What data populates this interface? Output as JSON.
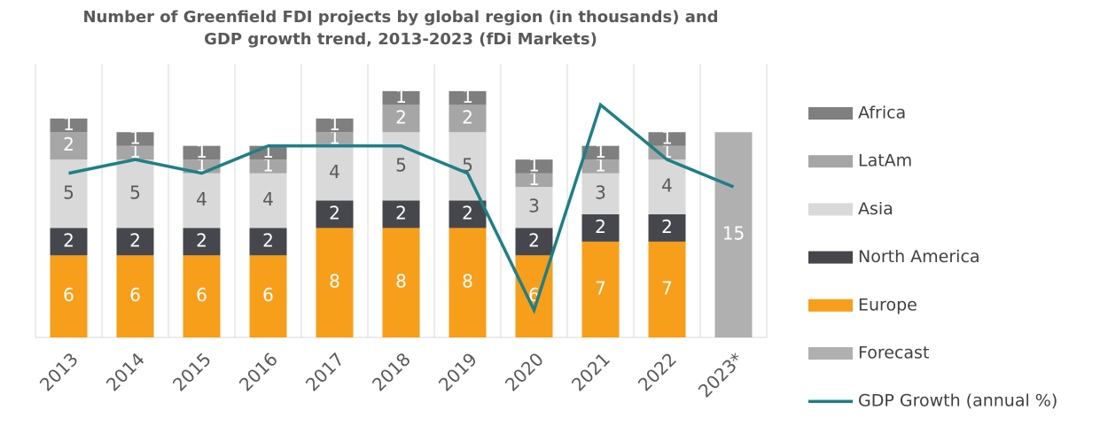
{
  "chart_data": {
    "type": "bar",
    "title": [
      "Number of Greenfield FDI projects by global region (in thousands) and",
      "GDP growth trend, 2013-2023 (fDi Markets)"
    ],
    "categories": [
      "2013",
      "2014",
      "2015",
      "2016",
      "2017",
      "2018",
      "2019",
      "2020",
      "2021",
      "2022",
      "2023*"
    ],
    "stacked": true,
    "series": [
      {
        "name": "Europe",
        "color": "#f79e1b",
        "label_color": "#ffffff",
        "values": [
          6,
          6,
          6,
          6,
          8,
          8,
          8,
          6,
          7,
          7,
          null
        ]
      },
      {
        "name": "North America",
        "color": "#45474d",
        "label_color": "#ffffff",
        "values": [
          2,
          2,
          2,
          2,
          2,
          2,
          2,
          2,
          2,
          2,
          null
        ]
      },
      {
        "name": "Asia",
        "color": "#d9d9d9",
        "label_color": "#595959",
        "values": [
          5,
          5,
          4,
          4,
          4,
          5,
          5,
          3,
          3,
          4,
          null
        ]
      },
      {
        "name": "LatAm",
        "color": "#a6a6a6",
        "label_color": "#ffffff",
        "values": [
          2,
          1,
          1,
          1,
          1,
          2,
          2,
          1,
          1,
          1,
          null
        ]
      },
      {
        "name": "Africa",
        "color": "#7f7f7f",
        "label_color": "#ffffff",
        "values": [
          1,
          1,
          1,
          1,
          1,
          1,
          1,
          1,
          1,
          1,
          null
        ]
      },
      {
        "name": "Forecast",
        "color": "#b0b0b0",
        "label_color": "#ffffff",
        "values": [
          null,
          null,
          null,
          null,
          null,
          null,
          null,
          null,
          null,
          null,
          15
        ]
      },
      {
        "name": "GDP Growth (annual %)",
        "type": "line",
        "axis": "y2",
        "color": "#1f7f86",
        "values": [
          3.2,
          3.8,
          3.2,
          4.4,
          4.4,
          4.4,
          3.2,
          -2.8,
          6.2,
          3.8,
          2.6
        ]
      }
    ],
    "ylim": [
      0,
      20
    ],
    "y2lim": [
      -4,
      8
    ],
    "grid": true,
    "legend": "right"
  }
}
